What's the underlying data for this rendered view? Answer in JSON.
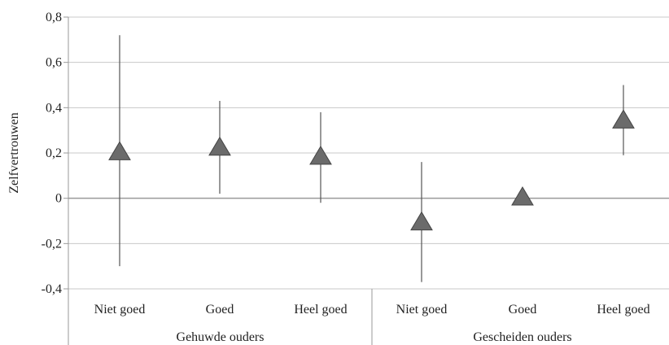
{
  "chart_data": {
    "type": "scatter",
    "title": "",
    "xlabel": "",
    "ylabel": "Zelfvertrouwen",
    "ylim": [
      -0.4,
      0.8
    ],
    "yticks": [
      -0.4,
      -0.2,
      0,
      0.2,
      0.4,
      0.6,
      0.8
    ],
    "ytick_labels": [
      "-0,4",
      "-0,2",
      "0",
      "0,2",
      "0,4",
      "0,6",
      "0,8"
    ],
    "grid": true,
    "legend": "none",
    "categories": [
      "Niet goed",
      "Goed",
      "Heel goed",
      "Niet goed",
      "Goed",
      "Heel goed"
    ],
    "groups": [
      {
        "label": "Gehuwde ouders",
        "span": [
          0,
          2
        ]
      },
      {
        "label": "Gescheiden ouders",
        "span": [
          3,
          5
        ]
      }
    ],
    "series": [
      {
        "marker": "triangle",
        "color": "#6b6b6b",
        "values": [
          0.2,
          0.22,
          0.18,
          -0.11,
          0.0,
          0.34
        ],
        "error_low": [
          -0.3,
          0.02,
          -0.02,
          -0.37,
          0.0,
          0.19
        ],
        "error_high": [
          0.72,
          0.43,
          0.38,
          0.16,
          0.0,
          0.5
        ]
      }
    ]
  }
}
